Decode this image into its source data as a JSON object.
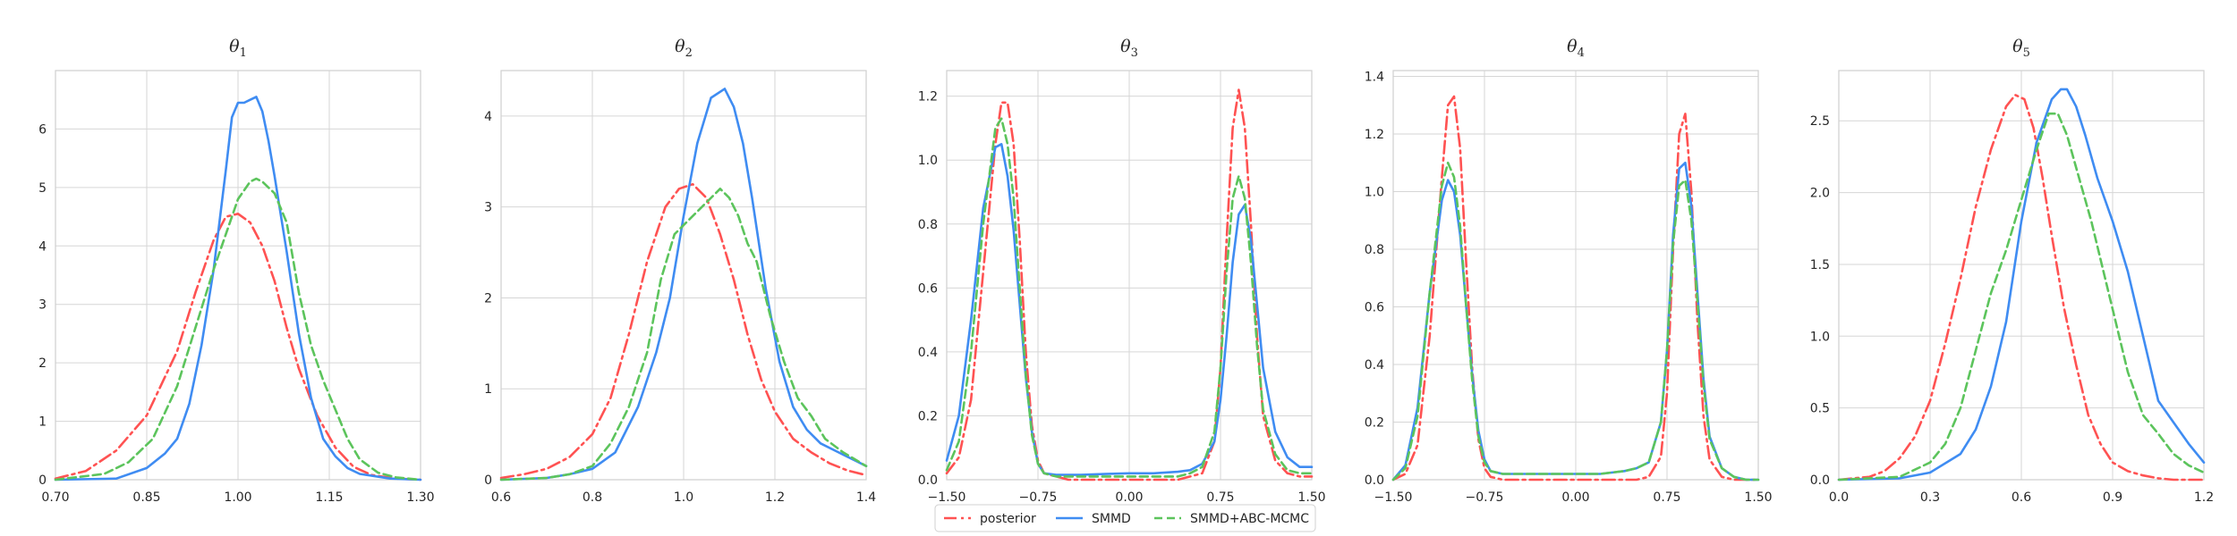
{
  "legend": [
    {
      "name": "posterior",
      "color": "#ff5252",
      "dash": "dashdot"
    },
    {
      "name": "SMMD",
      "color": "#3f8cf2",
      "dash": "solid"
    },
    {
      "name": "SMMD+ABC-MCMC",
      "color": "#5cc45c",
      "dash": "dashed"
    }
  ],
  "chart_data": [
    {
      "type": "line",
      "title": "θ",
      "title_subscript": "1",
      "xlim": [
        0.7,
        1.3
      ],
      "ylim": [
        0,
        7
      ],
      "xticks": [
        "0.70",
        "0.85",
        "1.00",
        "1.15",
        "1.30"
      ],
      "yticks": [
        "0",
        "1",
        "2",
        "3",
        "4",
        "5",
        "6"
      ],
      "grid": true,
      "series": [
        {
          "name": "posterior",
          "x": [
            0.7,
            0.75,
            0.8,
            0.85,
            0.9,
            0.93,
            0.96,
            0.98,
            1.0,
            1.02,
            1.04,
            1.06,
            1.08,
            1.1,
            1.13,
            1.16,
            1.19,
            1.22,
            1.26,
            1.3
          ],
          "y": [
            0.02,
            0.15,
            0.5,
            1.1,
            2.2,
            3.2,
            4.1,
            4.5,
            4.55,
            4.4,
            4.0,
            3.4,
            2.6,
            1.9,
            1.1,
            0.55,
            0.22,
            0.08,
            0.02,
            0.0
          ]
        },
        {
          "name": "SMMD",
          "x": [
            0.7,
            0.8,
            0.85,
            0.88,
            0.9,
            0.92,
            0.94,
            0.96,
            0.98,
            0.99,
            1.0,
            1.01,
            1.02,
            1.03,
            1.04,
            1.05,
            1.06,
            1.08,
            1.1,
            1.12,
            1.14,
            1.16,
            1.18,
            1.2,
            1.25,
            1.3
          ],
          "y": [
            0.0,
            0.02,
            0.2,
            0.45,
            0.7,
            1.3,
            2.3,
            3.6,
            5.3,
            6.2,
            6.45,
            6.45,
            6.5,
            6.55,
            6.3,
            5.8,
            5.2,
            3.9,
            2.5,
            1.4,
            0.7,
            0.4,
            0.2,
            0.1,
            0.02,
            0.0
          ]
        },
        {
          "name": "SMMD+ABC-MCMC",
          "x": [
            0.7,
            0.78,
            0.82,
            0.86,
            0.9,
            0.93,
            0.96,
            0.98,
            1.0,
            1.02,
            1.03,
            1.04,
            1.06,
            1.08,
            1.1,
            1.12,
            1.14,
            1.16,
            1.18,
            1.2,
            1.23,
            1.26,
            1.3
          ],
          "y": [
            0.0,
            0.1,
            0.3,
            0.7,
            1.6,
            2.6,
            3.6,
            4.2,
            4.8,
            5.1,
            5.15,
            5.1,
            4.9,
            4.4,
            3.2,
            2.3,
            1.7,
            1.2,
            0.7,
            0.35,
            0.12,
            0.04,
            0.0
          ]
        }
      ]
    },
    {
      "type": "line",
      "title": "θ",
      "title_subscript": "2",
      "xlim": [
        0.6,
        1.4
      ],
      "ylim": [
        0,
        4.5
      ],
      "xticks": [
        "0.6",
        "0.8",
        "1.0",
        "1.2",
        "1.4"
      ],
      "yticks": [
        "0",
        "1",
        "2",
        "3",
        "4"
      ],
      "grid": true,
      "series": [
        {
          "name": "posterior",
          "x": [
            0.6,
            0.65,
            0.7,
            0.75,
            0.8,
            0.84,
            0.88,
            0.92,
            0.96,
            0.99,
            1.02,
            1.05,
            1.08,
            1.11,
            1.14,
            1.17,
            1.2,
            1.24,
            1.28,
            1.32,
            1.36,
            1.4
          ],
          "y": [
            0.02,
            0.06,
            0.12,
            0.25,
            0.5,
            0.9,
            1.6,
            2.4,
            3.0,
            3.2,
            3.25,
            3.1,
            2.7,
            2.2,
            1.6,
            1.1,
            0.75,
            0.45,
            0.3,
            0.18,
            0.1,
            0.05
          ]
        },
        {
          "name": "SMMD",
          "x": [
            0.6,
            0.7,
            0.75,
            0.8,
            0.85,
            0.9,
            0.94,
            0.97,
            1.0,
            1.03,
            1.06,
            1.09,
            1.11,
            1.13,
            1.15,
            1.18,
            1.21,
            1.24,
            1.27,
            1.3,
            1.34,
            1.38,
            1.4
          ],
          "y": [
            0.0,
            0.02,
            0.06,
            0.12,
            0.3,
            0.8,
            1.4,
            2.0,
            2.9,
            3.7,
            4.2,
            4.3,
            4.1,
            3.7,
            3.1,
            2.1,
            1.3,
            0.8,
            0.55,
            0.4,
            0.3,
            0.2,
            0.15
          ]
        },
        {
          "name": "SMMD+ABC-MCMC",
          "x": [
            0.6,
            0.7,
            0.75,
            0.8,
            0.84,
            0.88,
            0.92,
            0.95,
            0.98,
            1.01,
            1.04,
            1.06,
            1.08,
            1.1,
            1.12,
            1.14,
            1.16,
            1.19,
            1.22,
            1.25,
            1.28,
            1.31,
            1.35,
            1.4
          ],
          "y": [
            0.0,
            0.02,
            0.06,
            0.15,
            0.4,
            0.8,
            1.4,
            2.2,
            2.7,
            2.85,
            3.0,
            3.1,
            3.2,
            3.1,
            2.9,
            2.6,
            2.4,
            1.8,
            1.3,
            0.9,
            0.7,
            0.45,
            0.3,
            0.15
          ]
        }
      ]
    },
    {
      "type": "line",
      "title": "θ",
      "title_subscript": "3",
      "xlim": [
        -1.5,
        1.5
      ],
      "ylim": [
        0,
        1.28
      ],
      "xticks": [
        "−1.50",
        "−0.75",
        "0.00",
        "0.75",
        "1.50"
      ],
      "yticks": [
        "0.0",
        "0.2",
        "0.4",
        "0.6",
        "0.8",
        "1.0",
        "1.2"
      ],
      "grid": true,
      "series": [
        {
          "name": "posterior",
          "x": [
            -1.5,
            -1.4,
            -1.3,
            -1.2,
            -1.1,
            -1.05,
            -1.0,
            -0.95,
            -0.9,
            -0.85,
            -0.8,
            -0.75,
            -0.7,
            -0.6,
            -0.5,
            -0.4,
            -0.2,
            0.0,
            0.2,
            0.4,
            0.5,
            0.6,
            0.7,
            0.75,
            0.8,
            0.85,
            0.9,
            0.95,
            1.0,
            1.05,
            1.1,
            1.2,
            1.3,
            1.4,
            1.5
          ],
          "y": [
            0.02,
            0.07,
            0.25,
            0.65,
            1.05,
            1.18,
            1.18,
            1.05,
            0.75,
            0.4,
            0.17,
            0.06,
            0.02,
            0.01,
            0.0,
            0.0,
            0.0,
            0.0,
            0.0,
            0.0,
            0.01,
            0.02,
            0.12,
            0.35,
            0.75,
            1.1,
            1.22,
            1.1,
            0.8,
            0.45,
            0.2,
            0.06,
            0.02,
            0.01,
            0.01
          ]
        },
        {
          "name": "SMMD",
          "x": [
            -1.5,
            -1.4,
            -1.3,
            -1.2,
            -1.1,
            -1.05,
            -1.0,
            -0.95,
            -0.9,
            -0.85,
            -0.8,
            -0.75,
            -0.7,
            -0.6,
            -0.5,
            -0.4,
            -0.2,
            0.0,
            0.2,
            0.4,
            0.5,
            0.6,
            0.7,
            0.75,
            0.8,
            0.85,
            0.9,
            0.95,
            1.0,
            1.05,
            1.1,
            1.2,
            1.3,
            1.4,
            1.5
          ],
          "y": [
            0.06,
            0.2,
            0.5,
            0.85,
            1.04,
            1.05,
            0.95,
            0.78,
            0.55,
            0.32,
            0.15,
            0.05,
            0.02,
            0.015,
            0.015,
            0.015,
            0.018,
            0.02,
            0.02,
            0.025,
            0.03,
            0.05,
            0.12,
            0.25,
            0.45,
            0.68,
            0.83,
            0.86,
            0.75,
            0.55,
            0.35,
            0.15,
            0.07,
            0.04,
            0.04
          ]
        },
        {
          "name": "SMMD+ABC-MCMC",
          "x": [
            -1.5,
            -1.4,
            -1.3,
            -1.2,
            -1.1,
            -1.05,
            -1.0,
            -0.95,
            -0.9,
            -0.85,
            -0.8,
            -0.75,
            -0.7,
            -0.6,
            -0.5,
            -0.4,
            -0.2,
            0.0,
            0.2,
            0.4,
            0.5,
            0.6,
            0.7,
            0.75,
            0.8,
            0.85,
            0.9,
            0.95,
            1.0,
            1.05,
            1.1,
            1.2,
            1.3,
            1.4,
            1.5
          ],
          "y": [
            0.03,
            0.12,
            0.4,
            0.8,
            1.1,
            1.13,
            1.05,
            0.88,
            0.6,
            0.33,
            0.14,
            0.05,
            0.02,
            0.01,
            0.01,
            0.01,
            0.01,
            0.01,
            0.01,
            0.01,
            0.02,
            0.04,
            0.15,
            0.35,
            0.65,
            0.88,
            0.95,
            0.88,
            0.68,
            0.42,
            0.22,
            0.08,
            0.03,
            0.02,
            0.02
          ]
        }
      ]
    },
    {
      "type": "line",
      "title": "θ",
      "title_subscript": "4",
      "xlim": [
        -1.5,
        1.5
      ],
      "ylim": [
        0,
        1.42
      ],
      "xticks": [
        "−1.50",
        "−0.75",
        "0.00",
        "0.75",
        "1.50"
      ],
      "yticks": [
        "0.0",
        "0.2",
        "0.4",
        "0.6",
        "0.8",
        "1.0",
        "1.2",
        "1.4"
      ],
      "grid": true,
      "series": [
        {
          "name": "posterior",
          "x": [
            -1.5,
            -1.4,
            -1.3,
            -1.2,
            -1.1,
            -1.05,
            -1.0,
            -0.95,
            -0.9,
            -0.85,
            -0.8,
            -0.75,
            -0.7,
            -0.6,
            -0.5,
            -0.4,
            -0.2,
            0.0,
            0.2,
            0.4,
            0.5,
            0.6,
            0.7,
            0.75,
            0.8,
            0.85,
            0.9,
            0.95,
            1.0,
            1.05,
            1.1,
            1.2,
            1.3,
            1.4,
            1.5
          ],
          "y": [
            0.0,
            0.02,
            0.12,
            0.5,
            1.05,
            1.3,
            1.33,
            1.15,
            0.75,
            0.38,
            0.14,
            0.04,
            0.01,
            0.0,
            0.0,
            0.0,
            0.0,
            0.0,
            0.0,
            0.0,
            0.0,
            0.01,
            0.08,
            0.3,
            0.8,
            1.2,
            1.27,
            1.0,
            0.55,
            0.22,
            0.07,
            0.01,
            0.0,
            0.0,
            0.0
          ]
        },
        {
          "name": "SMMD",
          "x": [
            -1.5,
            -1.4,
            -1.3,
            -1.2,
            -1.1,
            -1.05,
            -1.0,
            -0.95,
            -0.9,
            -0.85,
            -0.8,
            -0.75,
            -0.7,
            -0.6,
            -0.5,
            -0.4,
            -0.2,
            0.0,
            0.2,
            0.4,
            0.5,
            0.6,
            0.7,
            0.75,
            0.8,
            0.85,
            0.9,
            0.95,
            1.0,
            1.05,
            1.1,
            1.2,
            1.3,
            1.4,
            1.5
          ],
          "y": [
            0.0,
            0.05,
            0.25,
            0.65,
            0.97,
            1.04,
            1.0,
            0.85,
            0.6,
            0.36,
            0.17,
            0.07,
            0.03,
            0.02,
            0.02,
            0.02,
            0.02,
            0.02,
            0.02,
            0.03,
            0.04,
            0.06,
            0.2,
            0.45,
            0.85,
            1.08,
            1.1,
            0.95,
            0.65,
            0.35,
            0.15,
            0.04,
            0.01,
            0.0,
            0.0
          ]
        },
        {
          "name": "SMMD+ABC-MCMC",
          "x": [
            -1.5,
            -1.4,
            -1.3,
            -1.2,
            -1.1,
            -1.05,
            -1.0,
            -0.95,
            -0.9,
            -0.85,
            -0.8,
            -0.75,
            -0.7,
            -0.6,
            -0.5,
            -0.4,
            -0.2,
            0.0,
            0.2,
            0.4,
            0.5,
            0.6,
            0.7,
            0.75,
            0.8,
            0.85,
            0.9,
            0.95,
            1.0,
            1.05,
            1.1,
            1.2,
            1.3,
            1.4,
            1.5
          ],
          "y": [
            0.0,
            0.04,
            0.22,
            0.65,
            1.02,
            1.1,
            1.05,
            0.88,
            0.6,
            0.34,
            0.15,
            0.06,
            0.03,
            0.02,
            0.02,
            0.02,
            0.02,
            0.02,
            0.02,
            0.03,
            0.04,
            0.06,
            0.2,
            0.45,
            0.82,
            1.02,
            1.04,
            0.9,
            0.62,
            0.33,
            0.14,
            0.04,
            0.01,
            0.0,
            0.0
          ]
        }
      ]
    },
    {
      "type": "line",
      "title": "θ",
      "title_subscript": "5",
      "xlim": [
        0.0,
        1.2
      ],
      "ylim": [
        0,
        2.85
      ],
      "xticks": [
        "0.0",
        "0.3",
        "0.6",
        "0.9",
        "1.2"
      ],
      "yticks": [
        "0.0",
        "0.5",
        "1.0",
        "1.5",
        "2.0",
        "2.5"
      ],
      "grid": true,
      "series": [
        {
          "name": "posterior",
          "x": [
            0.0,
            0.1,
            0.15,
            0.2,
            0.25,
            0.3,
            0.35,
            0.4,
            0.45,
            0.5,
            0.55,
            0.58,
            0.61,
            0.64,
            0.67,
            0.7,
            0.74,
            0.78,
            0.82,
            0.86,
            0.9,
            0.95,
            1.0,
            1.05,
            1.1,
            1.2
          ],
          "y": [
            0.0,
            0.02,
            0.06,
            0.15,
            0.3,
            0.55,
            0.95,
            1.4,
            1.9,
            2.3,
            2.6,
            2.68,
            2.65,
            2.45,
            2.1,
            1.7,
            1.2,
            0.8,
            0.45,
            0.25,
            0.12,
            0.06,
            0.03,
            0.01,
            0.0,
            0.0
          ]
        },
        {
          "name": "SMMD",
          "x": [
            0.0,
            0.2,
            0.3,
            0.4,
            0.45,
            0.5,
            0.55,
            0.6,
            0.65,
            0.7,
            0.73,
            0.75,
            0.78,
            0.81,
            0.85,
            0.9,
            0.95,
            1.0,
            1.05,
            1.1,
            1.15,
            1.2
          ],
          "y": [
            0.0,
            0.01,
            0.05,
            0.18,
            0.35,
            0.65,
            1.1,
            1.8,
            2.35,
            2.65,
            2.72,
            2.72,
            2.6,
            2.4,
            2.1,
            1.8,
            1.45,
            1.0,
            0.55,
            0.4,
            0.25,
            0.12
          ]
        },
        {
          "name": "SMMD+ABC-MCMC",
          "x": [
            0.0,
            0.2,
            0.3,
            0.35,
            0.4,
            0.45,
            0.5,
            0.55,
            0.6,
            0.65,
            0.69,
            0.72,
            0.75,
            0.79,
            0.83,
            0.87,
            0.91,
            0.95,
            1.0,
            1.05,
            1.1,
            1.15,
            1.2
          ],
          "y": [
            0.0,
            0.02,
            0.12,
            0.25,
            0.5,
            0.9,
            1.3,
            1.6,
            1.95,
            2.3,
            2.55,
            2.55,
            2.4,
            2.1,
            1.8,
            1.45,
            1.1,
            0.75,
            0.45,
            0.32,
            0.18,
            0.1,
            0.05
          ]
        }
      ]
    }
  ]
}
